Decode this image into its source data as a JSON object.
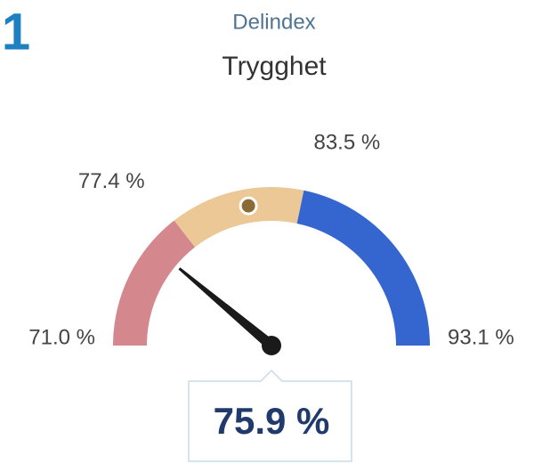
{
  "chart_data": {
    "type": "gauge",
    "badge": "1",
    "subtitle": "Delindex",
    "title": "Trygghet",
    "ylim": [
      71.0,
      93.1
    ],
    "ticks": [
      {
        "value": 71.0,
        "label": "71.0 %"
      },
      {
        "value": 77.4,
        "label": "77.4 %"
      },
      {
        "value": 83.5,
        "label": "83.5 %"
      },
      {
        "value": 93.1,
        "label": "93.1 %"
      }
    ],
    "bands": [
      {
        "color": "#d4878d"
      },
      {
        "color": "#ebc896"
      },
      {
        "color": "#3566d0"
      }
    ],
    "marker": 80.9,
    "marker_color": "#8a6a35",
    "value": 75.9,
    "value_label": "75.9 %",
    "needle_color": "#1a1a1a"
  }
}
